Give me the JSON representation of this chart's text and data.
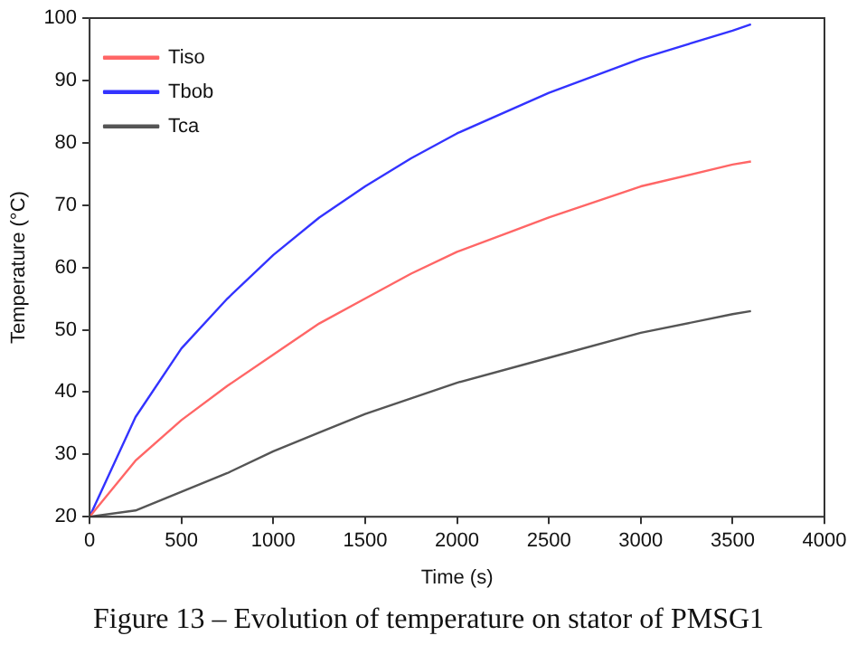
{
  "chart_data": {
    "type": "line",
    "xlabel": "Time (s)",
    "ylabel": "Temperature (°C)",
    "x": [
      0,
      250,
      500,
      750,
      1000,
      1250,
      1500,
      1750,
      2000,
      2500,
      3000,
      3500,
      3600
    ],
    "series": [
      {
        "name": "Tiso",
        "color": "#ff6666",
        "values": [
          20,
          29,
          35.5,
          41,
          46,
          51,
          55,
          59,
          62.5,
          68,
          73,
          76.5,
          77
        ]
      },
      {
        "name": "Tbob",
        "color": "#3333ff",
        "values": [
          20,
          36,
          47,
          55,
          62,
          68,
          73,
          77.5,
          81.5,
          88,
          93.5,
          98,
          99
        ]
      },
      {
        "name": "Tca",
        "color": "#555555",
        "values": [
          20,
          21,
          24,
          27,
          30.5,
          33.5,
          36.5,
          39,
          41.5,
          45.5,
          49.5,
          52.5,
          53
        ]
      }
    ],
    "xlim": [
      0,
      4000
    ],
    "xticks": [
      0,
      500,
      1000,
      1500,
      2000,
      2500,
      3000,
      3500,
      4000
    ],
    "ylim": [
      20,
      100
    ],
    "yticks": [
      20,
      30,
      40,
      50,
      60,
      70,
      80,
      90,
      100
    ],
    "grid": false,
    "legend": "top left",
    "marker": "none",
    "line_style": "solid",
    "annotations": [
      "Figure 13 – Evolution of temperature on stator of PMSG1"
    ]
  }
}
